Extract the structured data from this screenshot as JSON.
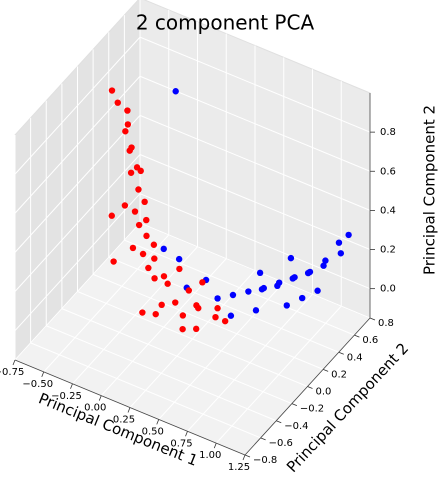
{
  "chart_data": {
    "type": "scatter3d",
    "title": "2 component PCA",
    "xlabel": "Principal Component 1",
    "ylabel": "Principal Component 2",
    "zlabel": "Principal Component 2",
    "xlim": [
      -0.75,
      1.25
    ],
    "ylim": [
      -0.8,
      0.8
    ],
    "zlim": [
      -0.15,
      1.0
    ],
    "xticks": [
      {
        "value": -0.75,
        "label": "−0.75"
      },
      {
        "value": -0.5,
        "label": "−0.50"
      },
      {
        "value": -0.25,
        "label": "−0.25"
      },
      {
        "value": 0,
        "label": "0.00"
      },
      0.25,
      {
        "value": 0.5,
        "label": "0.50"
      },
      0.75,
      {
        "value": 1,
        "label": "1.00"
      },
      1.25
    ],
    "yticks": [
      {
        "value": -0.8,
        "label": "−0.8"
      },
      {
        "value": -0.6,
        "label": "−0.6"
      },
      {
        "value": -0.4,
        "label": "−0.4"
      },
      {
        "value": -0.2,
        "label": "−0.2"
      },
      {
        "value": 0,
        "label": "0.0"
      },
      0.2,
      0.4,
      0.6,
      0.8
    ],
    "zticks": [
      {
        "value": 0,
        "label": "0.0"
      },
      0.2,
      0.4,
      0.6,
      0.8
    ],
    "grid": true,
    "series": [
      {
        "color": "blue",
        "x": [
          0.4,
          0.5,
          0.6,
          0.7,
          0.8,
          0.9,
          1.0,
          1.1,
          1.2,
          0.65,
          0.75,
          0.85,
          0.95,
          1.05,
          1.15,
          0.55,
          0.7,
          0.9,
          1.0,
          1.1,
          0.2,
          0.1,
          0.0,
          0.3,
          -0.1,
          1.2,
          0.8,
          0.6
        ],
        "y": [
          0.1,
          0.15,
          0.2,
          0.25,
          0.3,
          0.35,
          0.4,
          0.45,
          0.5,
          0.3,
          0.35,
          0.4,
          0.45,
          0.5,
          0.55,
          0.05,
          0.15,
          0.25,
          0.3,
          0.35,
          0.0,
          0.05,
          0.0,
          0.1,
          0.3,
          0.6,
          0.45,
          0.35
        ],
        "z": [
          0.05,
          0.07,
          0.09,
          0.11,
          0.14,
          0.17,
          0.2,
          0.26,
          0.3,
          0.07,
          0.09,
          0.13,
          0.16,
          0.2,
          0.32,
          0.02,
          0.04,
          0.07,
          0.11,
          0.15,
          0.1,
          0.2,
          0.25,
          0.12,
          0.9,
          0.35,
          0.2,
          0.12
        ]
      },
      {
        "color": "red",
        "x": [
          -0.4,
          -0.35,
          -0.3,
          -0.38,
          -0.28,
          -0.33,
          -0.25,
          -0.3,
          -0.22,
          -0.27,
          -0.2,
          -0.25,
          -0.18,
          -0.22,
          -0.15,
          -0.2,
          -0.12,
          -0.18,
          -0.1,
          -0.15,
          -0.3,
          -0.35,
          -0.08,
          0.0,
          0.05,
          0.1,
          0.15,
          0.2,
          0.25,
          0.3,
          0.35,
          0.4,
          0.45,
          0.5,
          -0.05,
          0.0,
          0.1,
          0.2,
          -0.1,
          0.3,
          -0.45,
          -0.2
        ],
        "y": [
          0.0,
          0.05,
          -0.05,
          0.1,
          0.0,
          0.05,
          -0.05,
          0.1,
          0.0,
          -0.1,
          0.05,
          0.0,
          -0.05,
          0.1,
          0.0,
          -0.1,
          0.05,
          0.0,
          -0.05,
          0.1,
          -0.2,
          -0.15,
          0.0,
          0.05,
          -0.1,
          0.0,
          0.1,
          -0.05,
          0.05,
          0.0,
          -0.1,
          0.1,
          0.0,
          0.05,
          -0.2,
          0.2,
          -0.25,
          0.2,
          0.15,
          -0.2,
          0.0,
          0.0
        ],
        "z": [
          0.9,
          0.85,
          0.8,
          0.75,
          0.7,
          0.65,
          0.6,
          0.55,
          0.5,
          0.45,
          0.42,
          0.38,
          0.35,
          0.3,
          0.28,
          0.25,
          0.22,
          0.18,
          0.15,
          0.12,
          0.2,
          0.4,
          0.08,
          0.05,
          0.02,
          0.0,
          0.03,
          -0.02,
          0.0,
          0.02,
          -0.03,
          0.0,
          0.01,
          -0.02,
          0.0,
          0.06,
          0.05,
          0.04,
          0.02,
          0.0,
          0.95,
          0.6
        ]
      }
    ]
  }
}
